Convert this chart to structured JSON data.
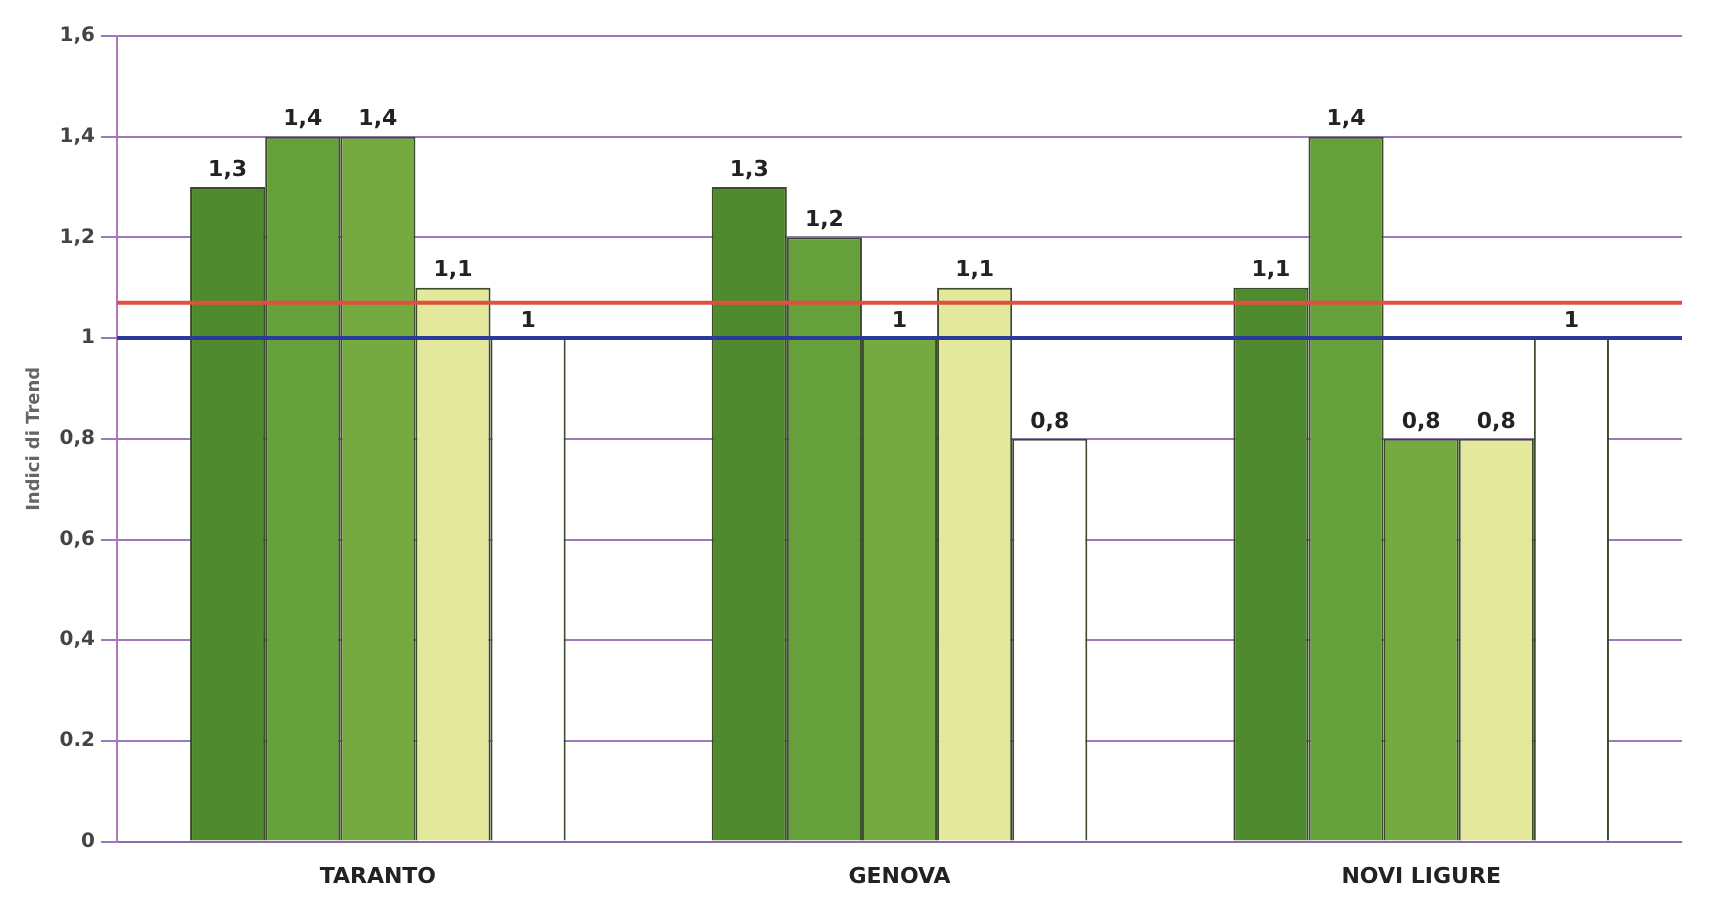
{
  "chart_data": {
    "type": "bar",
    "ylabel": "Indici di Trend",
    "categories": [
      "TARANTO",
      "GENOVA",
      "NOVI LIGURE"
    ],
    "series": [
      {
        "color": "#4f8a2e",
        "values": [
          1.3,
          1.3,
          1.1
        ],
        "value_labels": [
          "1,3",
          "1,3",
          "1,1"
        ]
      },
      {
        "color": "#66a03a",
        "values": [
          1.4,
          1.2,
          1.4
        ],
        "value_labels": [
          "1,4",
          "1,2",
          "1,4"
        ]
      },
      {
        "color": "#74aa40",
        "values": [
          1.4,
          1,
          0.8
        ],
        "value_labels": [
          "1,4",
          "1",
          "0,8"
        ]
      },
      {
        "color": "#e4e89c",
        "values": [
          1.1,
          1.1,
          0.8
        ],
        "value_labels": [
          "1,1",
          "1,1",
          "0,8"
        ]
      },
      {
        "color": "#ffffff",
        "values": [
          1,
          0.8,
          1
        ],
        "value_labels": [
          "1",
          "0,8",
          "1"
        ]
      }
    ],
    "ylim": [
      0,
      1.6
    ],
    "yticks": [
      0,
      {
        "value": 0.2,
        "label": "0.2"
      },
      {
        "value": 0.4,
        "label": "0,4"
      },
      {
        "value": 0.6,
        "label": "0,6"
      },
      {
        "value": 0.8,
        "label": "0,8"
      },
      1,
      {
        "value": 1.2,
        "label": "1,2"
      },
      {
        "value": 1.4,
        "label": "1,4"
      },
      {
        "value": 1.6,
        "label": "1,6"
      }
    ],
    "grid": "y",
    "legend": false,
    "ref_lines": [
      {
        "axis": "y",
        "value": 1,
        "color": "#2a3a9a"
      },
      {
        "axis": "y",
        "value": 1.07,
        "color": "#e05040"
      }
    ]
  }
}
